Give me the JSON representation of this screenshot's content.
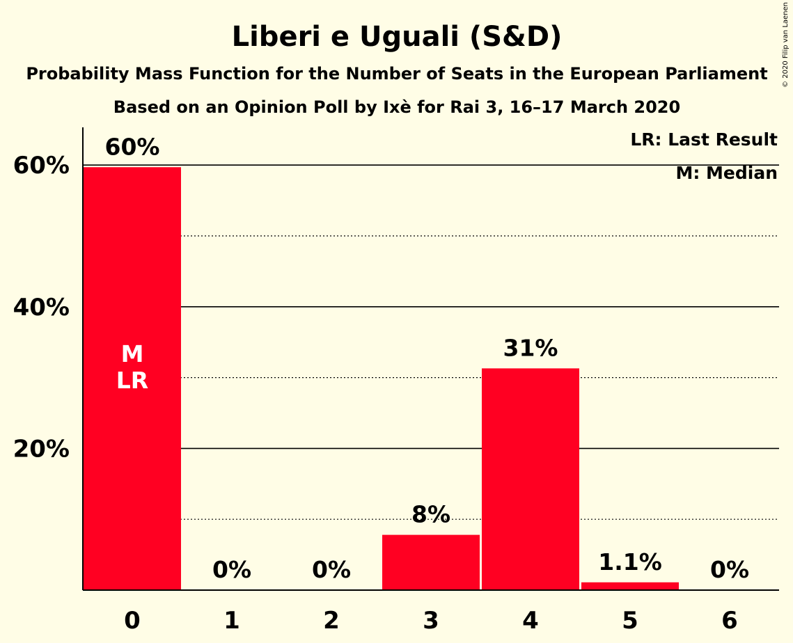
{
  "chart_data": {
    "type": "bar",
    "title": "Liberi e Uguali (S&D)",
    "subtitle": "Probability Mass Function for the Number of Seats in the European Parliament",
    "subtitle2": "Based on an Opinion Poll by Ixè for Rai 3, 16–17 March 2020",
    "copyright": "© 2020 Filip van Laenen",
    "categories": [
      "0",
      "1",
      "2",
      "3",
      "4",
      "5",
      "6"
    ],
    "values": [
      59.7,
      0,
      0,
      7.8,
      31.3,
      1.1,
      0
    ],
    "value_labels": [
      "60%",
      "0%",
      "0%",
      "8%",
      "31%",
      "1.1%",
      "0%"
    ],
    "in_bar_labels": [
      {
        "category": "0",
        "lines": [
          "M",
          "LR"
        ]
      }
    ],
    "ylim": [
      0,
      65
    ],
    "yticks": [
      {
        "value": 20,
        "label": "20%"
      },
      {
        "value": 40,
        "label": "40%"
      },
      {
        "value": 60,
        "label": "60%"
      }
    ],
    "minor_gridlines": [
      10,
      30,
      50
    ],
    "grid": true,
    "legend": {
      "placement": "top-right",
      "entries": [
        "LR: Last Result",
        "M: Median"
      ]
    },
    "xlabel": "",
    "ylabel": "",
    "colors": {
      "bar": "#ff0022",
      "background": "#fffde6",
      "text": "#000000"
    }
  }
}
